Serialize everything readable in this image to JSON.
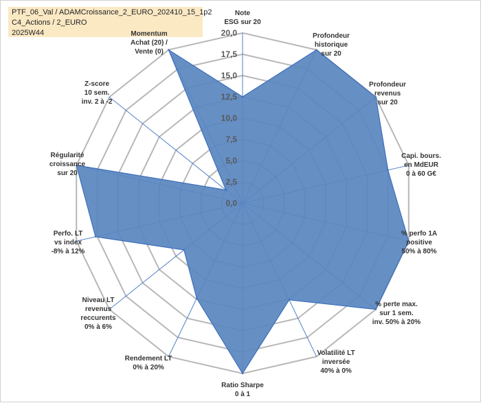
{
  "title": {
    "line1": "PTF_06_Val / ADAMCroissance_2_EURO_202410_15_1p2",
    "line2": "C4_Actions / 2_EURO",
    "line3": "2025W44"
  },
  "colors": {
    "fill": "#5a86c0",
    "stroke": "#3c6fbd",
    "grid": "#b7b7b7",
    "spoke": "#4f7fc8",
    "title_bg": "#fbe9c4"
  },
  "chart_data": {
    "type": "radar",
    "rmin": 0,
    "rmax": 20,
    "ticks": [
      "0,0",
      "2,5",
      "5,0",
      "7,5",
      "10,0",
      "12,5",
      "15,0",
      "17,5",
      "20,0"
    ],
    "grid": true,
    "axes": [
      {
        "label": [
          "Note",
          "ESG sur 20"
        ],
        "value": 12.5
      },
      {
        "label": [
          "Profondeur",
          "historique",
          "sur 20"
        ],
        "value": 20
      },
      {
        "label": [
          "Profondeur",
          "revenus",
          "sur 20"
        ],
        "value": 20
      },
      {
        "label": [
          "Capi. bours.",
          "en MdEUR",
          "0 à 60 G€"
        ],
        "value": 17.5
      },
      {
        "label": [
          "% perfo 1A",
          "positive",
          "50% à 80%"
        ],
        "value": 20
      },
      {
        "label": [
          "% perte max.",
          "sur 1 sem.",
          "inv. 50% à 20%"
        ],
        "value": 20
      },
      {
        "label": [
          "Volatilité LT",
          "inversée",
          "40% à 0%"
        ],
        "value": 12.6
      },
      {
        "label": [
          "Ratio Sharpe",
          "0 à 1"
        ],
        "value": 20
      },
      {
        "label": [
          "Rendement LT",
          "0% à 20%"
        ],
        "value": 12.4
      },
      {
        "label": [
          "Niveau LT",
          "revenus",
          "reccurents",
          "0% à 6%"
        ],
        "value": 8.8
      },
      {
        "label": [
          "Perfo. LT",
          "vs index",
          "-8% à 12%"
        ],
        "value": 17.7
      },
      {
        "label": [
          "Régularité",
          "croissance",
          "sur 20"
        ],
        "value": 20
      },
      {
        "label": [
          "Z-score",
          "10 sem.",
          "inv. 2 à -2"
        ],
        "value": 2.5
      },
      {
        "label": [
          "Momentum",
          "Achat (20) /",
          "Vente (0)"
        ],
        "value": 20
      }
    ]
  }
}
